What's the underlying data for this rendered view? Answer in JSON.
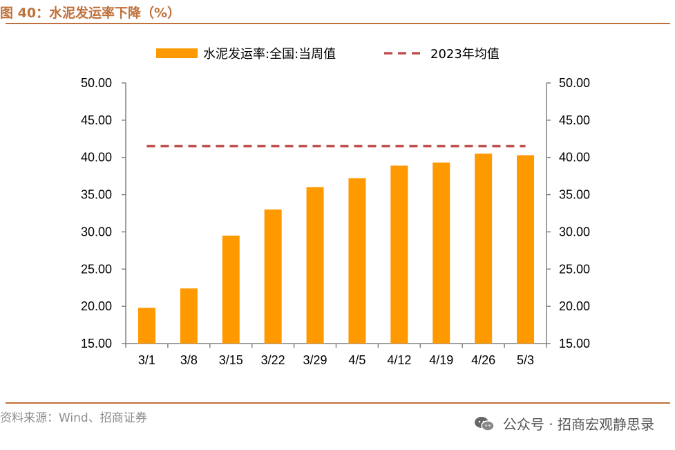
{
  "figure": {
    "title": "图 40：水泥发运率下降（%）",
    "source": "资料来源：Wind、招商证券",
    "watermark": "公众号 · 招商宏观静思录"
  },
  "colors": {
    "bar": "#FF9900",
    "avg_line": "#C0504D",
    "title": "#C0703A",
    "axis": "#808080"
  },
  "chart_data": {
    "type": "bar",
    "categories": [
      "3/1",
      "3/8",
      "3/15",
      "3/22",
      "3/29",
      "4/5",
      "4/12",
      "4/19",
      "4/26",
      "5/3"
    ],
    "series": [
      {
        "name": "水泥发运率:全国:当周值",
        "kind": "bar",
        "values": [
          19.8,
          22.4,
          29.5,
          33.0,
          36.0,
          37.2,
          38.9,
          39.3,
          40.5,
          40.3
        ]
      },
      {
        "name": "2023年均值",
        "kind": "dashed-line",
        "values": [
          41.5,
          41.5,
          41.5,
          41.5,
          41.5,
          41.5,
          41.5,
          41.5,
          41.5,
          41.5
        ]
      }
    ],
    "ylim": [
      15,
      50
    ],
    "yticks": [
      "15.00",
      "20.00",
      "25.00",
      "30.00",
      "35.00",
      "40.00",
      "45.00",
      "50.00"
    ],
    "ytick_values": [
      15,
      20,
      25,
      30,
      35,
      40,
      45,
      50
    ],
    "secondary_yticks": [
      "15.00",
      "20.00",
      "25.00",
      "30.00",
      "35.00",
      "40.00",
      "45.00",
      "50.00"
    ],
    "legend_position": "top-center",
    "grid": false
  }
}
